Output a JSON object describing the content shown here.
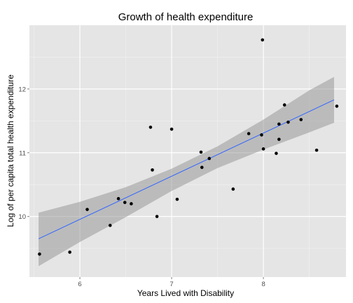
{
  "chart_data": {
    "type": "scatter",
    "title": "Growth of health expenditure",
    "xlabel": "Years Lived with Disability",
    "ylabel": "Log of per capita total health expenditure",
    "xlim": [
      5.45,
      8.9
    ],
    "ylim": [
      9.05,
      13.0
    ],
    "x_ticks": [
      {
        "value": 6,
        "label": "6"
      },
      {
        "value": 7,
        "label": "7"
      },
      {
        "value": 8,
        "label": "8"
      }
    ],
    "y_ticks": [
      {
        "value": 10,
        "label": "10"
      },
      {
        "value": 11,
        "label": "11"
      },
      {
        "value": 12,
        "label": "12"
      }
    ],
    "grid": true,
    "points": [
      {
        "x": 5.56,
        "y": 9.41
      },
      {
        "x": 5.89,
        "y": 9.44
      },
      {
        "x": 6.08,
        "y": 10.11
      },
      {
        "x": 6.33,
        "y": 9.86
      },
      {
        "x": 6.42,
        "y": 10.28
      },
      {
        "x": 6.49,
        "y": 10.22
      },
      {
        "x": 6.56,
        "y": 10.2
      },
      {
        "x": 6.77,
        "y": 11.4
      },
      {
        "x": 6.79,
        "y": 10.73
      },
      {
        "x": 6.84,
        "y": 10.0
      },
      {
        "x": 7.0,
        "y": 11.37
      },
      {
        "x": 7.06,
        "y": 10.27
      },
      {
        "x": 7.32,
        "y": 11.01
      },
      {
        "x": 7.33,
        "y": 10.77
      },
      {
        "x": 7.41,
        "y": 10.91
      },
      {
        "x": 7.67,
        "y": 10.43
      },
      {
        "x": 7.84,
        "y": 11.3
      },
      {
        "x": 7.98,
        "y": 11.28
      },
      {
        "x": 7.99,
        "y": 12.77
      },
      {
        "x": 8.0,
        "y": 11.06
      },
      {
        "x": 8.14,
        "y": 10.99
      },
      {
        "x": 8.17,
        "y": 11.21
      },
      {
        "x": 8.17,
        "y": 11.45
      },
      {
        "x": 8.23,
        "y": 11.75
      },
      {
        "x": 8.27,
        "y": 11.48
      },
      {
        "x": 8.41,
        "y": 11.52
      },
      {
        "x": 8.58,
        "y": 11.04
      },
      {
        "x": 8.8,
        "y": 11.73
      }
    ],
    "fit_line": [
      {
        "x": 5.55,
        "y": 9.65
      },
      {
        "x": 8.77,
        "y": 11.83
      }
    ],
    "confidence_band": [
      {
        "x": 5.55,
        "lower": 9.22,
        "upper": 10.06
      },
      {
        "x": 6.0,
        "lower": 9.6,
        "upper": 10.23
      },
      {
        "x": 6.5,
        "lower": 9.99,
        "upper": 10.46
      },
      {
        "x": 7.0,
        "lower": 10.4,
        "upper": 10.75
      },
      {
        "x": 7.5,
        "lower": 10.76,
        "upper": 11.1
      },
      {
        "x": 8.0,
        "lower": 11.05,
        "upper": 11.52
      },
      {
        "x": 8.5,
        "lower": 11.32,
        "upper": 11.98
      },
      {
        "x": 8.77,
        "lower": 11.47,
        "upper": 12.19
      }
    ],
    "colors": {
      "panel": "#e5e5e5",
      "grid_major": "#ffffff",
      "grid_minor": "#f2f2f2",
      "point": "#000000",
      "fit_line": "#3366ff",
      "band": "#999999"
    }
  }
}
